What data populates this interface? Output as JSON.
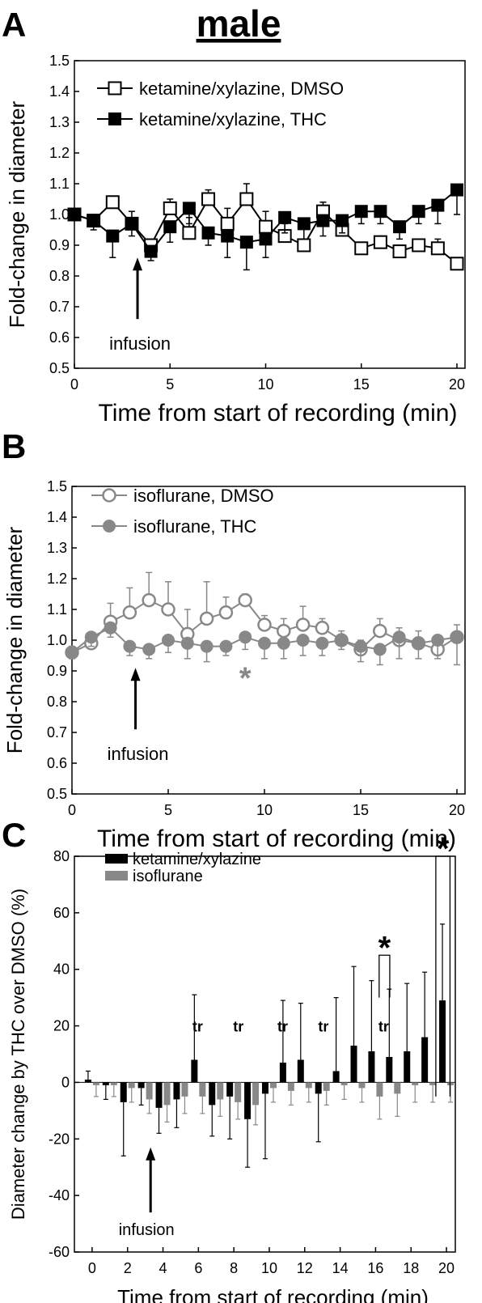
{
  "figure_title": "male",
  "chart_data": [
    {
      "panel": "A",
      "type": "line",
      "xlabel": "Time from start of recording (min)",
      "ylabel": "Fold-change in diameter",
      "xlim": [
        0,
        20
      ],
      "ylim": [
        0.5,
        1.5
      ],
      "xticks": [
        "0",
        "5",
        "10",
        "15",
        "20"
      ],
      "yticks": [
        "0.5",
        "0.6",
        "0.7",
        "0.8",
        "0.9",
        "1.0",
        "1.1",
        "1.2",
        "1.3",
        "1.4",
        "1.5"
      ],
      "legend_position": "top-left",
      "annotation": {
        "text": "infusion",
        "x": 3.3
      },
      "series": [
        {
          "name": "ketamine/xylazine, DMSO",
          "marker": "open-square",
          "color": "#000000",
          "x": [
            0,
            1,
            2,
            3,
            4,
            5,
            6,
            7,
            8,
            9,
            10,
            11,
            12,
            13,
            14,
            15,
            16,
            17,
            18,
            19,
            20
          ],
          "y": [
            1.0,
            0.98,
            1.04,
            0.97,
            0.9,
            1.02,
            0.94,
            1.05,
            0.97,
            1.05,
            0.96,
            0.93,
            0.9,
            1.01,
            0.95,
            0.89,
            0.91,
            0.88,
            0.9,
            0.89,
            0.84
          ],
          "err": [
            0.01,
            0.02,
            0.02,
            0.04,
            0.02,
            0.03,
            0.05,
            0.03,
            0.05,
            0.05,
            0.05,
            0.04,
            0.02,
            0.03,
            0.04,
            0.02,
            0.02,
            0.02,
            0.02,
            0.03,
            0.02
          ]
        },
        {
          "name": "ketamine/xylazine, THC",
          "marker": "filled-square",
          "color": "#000000",
          "x": [
            0,
            1,
            2,
            3,
            4,
            5,
            6,
            7,
            8,
            9,
            10,
            11,
            12,
            13,
            14,
            15,
            16,
            17,
            18,
            19,
            20
          ],
          "y": [
            1.0,
            0.98,
            0.93,
            0.97,
            0.88,
            0.96,
            1.02,
            0.94,
            0.93,
            0.91,
            0.92,
            0.99,
            0.97,
            0.98,
            0.98,
            1.01,
            1.01,
            0.96,
            1.01,
            1.03,
            1.08
          ],
          "err": [
            0.02,
            0.03,
            0.07,
            0.04,
            0.03,
            0.05,
            0.05,
            0.04,
            0.07,
            0.09,
            0.06,
            0.05,
            0.05,
            0.05,
            0.04,
            0.04,
            0.04,
            0.04,
            0.04,
            0.06,
            0.08
          ]
        }
      ]
    },
    {
      "panel": "B",
      "type": "line",
      "xlabel": "Time from start of recording (min)",
      "ylabel": "Fold-change in diameter",
      "xlim": [
        0,
        20
      ],
      "ylim": [
        0.5,
        1.5
      ],
      "xticks": [
        "0",
        "5",
        "10",
        "15",
        "20"
      ],
      "yticks": [
        "0.5",
        "0.6",
        "0.7",
        "0.8",
        "0.9",
        "1.0",
        "1.1",
        "1.2",
        "1.3",
        "1.4",
        "1.5"
      ],
      "legend_position": "top-left",
      "annotation": {
        "text": "infusion",
        "x": 3.3
      },
      "significance": [
        {
          "text": "*",
          "x": 9
        }
      ],
      "series": [
        {
          "name": "isoflurane, DMSO",
          "marker": "open-circle",
          "color": "#888888",
          "x": [
            0,
            1,
            2,
            3,
            4,
            5,
            6,
            7,
            8,
            9,
            10,
            11,
            12,
            13,
            14,
            15,
            16,
            17,
            18,
            19,
            20
          ],
          "y": [
            0.96,
            0.99,
            1.06,
            1.09,
            1.13,
            1.1,
            1.02,
            1.07,
            1.09,
            1.13,
            1.05,
            1.03,
            1.05,
            1.04,
            1.0,
            0.97,
            1.03,
            1.0,
            0.99,
            0.97,
            1.01
          ],
          "err": [
            0.02,
            0.03,
            0.06,
            0.08,
            0.09,
            0.09,
            0.08,
            0.12,
            0.05,
            0.02,
            0.03,
            0.04,
            0.06,
            0.03,
            0.03,
            0.03,
            0.04,
            0.04,
            0.04,
            0.03,
            0.04
          ]
        },
        {
          "name": "isoflurane, THC",
          "marker": "filled-circle",
          "color": "#888888",
          "x": [
            0,
            1,
            2,
            3,
            4,
            5,
            6,
            7,
            8,
            9,
            10,
            11,
            12,
            13,
            14,
            15,
            16,
            17,
            18,
            19,
            20
          ],
          "y": [
            0.96,
            1.01,
            1.04,
            0.98,
            0.97,
            1.0,
            0.99,
            0.98,
            0.98,
            1.01,
            0.99,
            0.99,
            1.0,
            0.99,
            1.0,
            0.98,
            0.97,
            1.01,
            0.99,
            1.0,
            1.01
          ],
          "err": [
            0.02,
            0.03,
            0.03,
            0.03,
            0.03,
            0.04,
            0.05,
            0.05,
            0.03,
            0.04,
            0.05,
            0.05,
            0.05,
            0.04,
            0.03,
            0.05,
            0.05,
            0.07,
            0.05,
            0.06,
            0.09
          ]
        }
      ]
    },
    {
      "panel": "C",
      "type": "bar",
      "xlabel": "Time from start of recording (min)",
      "ylabel": "Diameter change by THC over DMSO (%)",
      "xlim": [
        -1,
        20.5
      ],
      "ylim": [
        -60,
        80
      ],
      "xticks": [
        "0",
        "2",
        "4",
        "6",
        "8",
        "10",
        "12",
        "14",
        "16",
        "18",
        "20"
      ],
      "yticks": [
        "-60",
        "-40",
        "-20",
        "0",
        "20",
        "40",
        "60",
        "80"
      ],
      "legend_position": "top-left",
      "annotation": {
        "text": "infusion",
        "x": 3.3
      },
      "labels": [
        {
          "text": "tr",
          "x": 5.5
        },
        {
          "text": "tr",
          "x": 7.8
        },
        {
          "text": "tr",
          "x": 10.3
        },
        {
          "text": "tr",
          "x": 12.6
        },
        {
          "text": "tr",
          "x": 16.0
        }
      ],
      "significance": [
        {
          "text": "*",
          "x1": 16.2,
          "x2": 16.8
        },
        {
          "text": "*",
          "x1": 19.4,
          "x2": 20.2
        }
      ],
      "series": [
        {
          "name": "ketamine/xylazine",
          "color": "#000000",
          "x": [
            0,
            1,
            2,
            3,
            4,
            5,
            6,
            7,
            8,
            9,
            10,
            11,
            12,
            13,
            14,
            15,
            16,
            17,
            18,
            19,
            20
          ],
          "values": [
            1,
            -1,
            -7,
            -2,
            -9,
            -6,
            8,
            -8,
            -5,
            -13,
            -4,
            7,
            8,
            -4,
            4,
            13,
            11,
            9,
            11,
            16,
            29
          ],
          "err": [
            3,
            5,
            19,
            6,
            9,
            10,
            23,
            11,
            15,
            17,
            23,
            22,
            20,
            17,
            26,
            28,
            25,
            24,
            24,
            23,
            27
          ]
        },
        {
          "name": "isoflurane",
          "color": "#888888",
          "x": [
            0,
            1,
            2,
            3,
            4,
            5,
            6,
            7,
            8,
            9,
            10,
            11,
            12,
            13,
            14,
            15,
            16,
            17,
            18,
            19,
            20
          ],
          "values": [
            -1,
            -1,
            -2,
            -6,
            -8,
            -5,
            -5,
            -6,
            -7,
            -8,
            -2,
            -3,
            -2,
            -3,
            -1,
            -2,
            -5,
            -4,
            -1,
            -1,
            -1
          ],
          "err": [
            4,
            4,
            5,
            5,
            6,
            6,
            6,
            6,
            6,
            7,
            5,
            5,
            5,
            5,
            5,
            5,
            8,
            8,
            6,
            6,
            6
          ]
        }
      ]
    }
  ]
}
